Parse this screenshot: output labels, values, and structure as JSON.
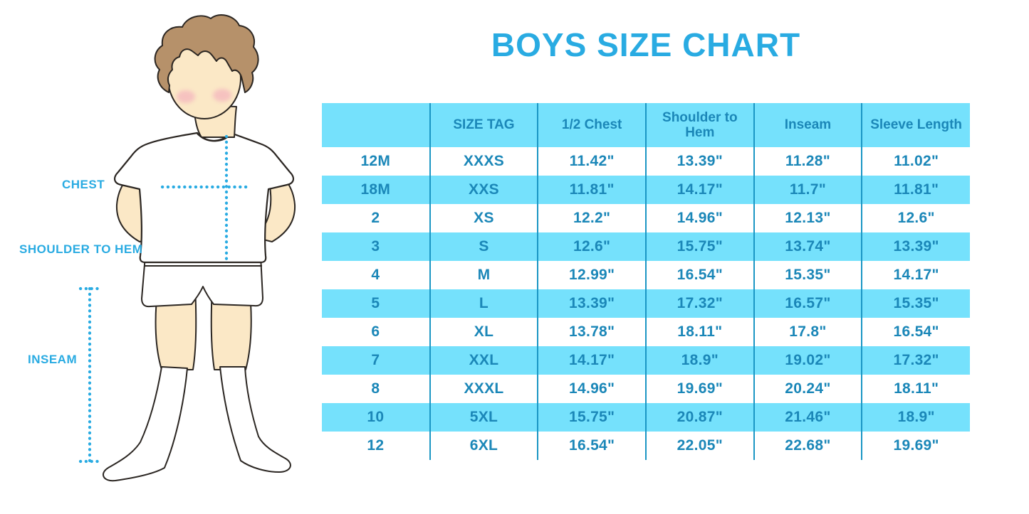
{
  "title": {
    "text": "BOYS SIZE CHART",
    "color": "#29ABE2"
  },
  "figure": {
    "labels": [
      {
        "id": "chest",
        "text": "CHEST"
      },
      {
        "id": "shoulder_to_hem",
        "text": "SHOULDER TO HEM"
      },
      {
        "id": "inseam",
        "text": "INSEAM"
      }
    ],
    "colors": {
      "skin": "#FBE8C6",
      "hair": "#B6916A",
      "blush": "#F2A4BB",
      "outline": "#2B2622",
      "garment": "#FFFFFF",
      "measure_line": "#29ABE2"
    }
  },
  "chart_data": {
    "type": "table",
    "title": "BOYS SIZE CHART",
    "columns": [
      "",
      "SIZE TAG",
      "1/2 Chest",
      "Shoulder to Hem",
      "Inseam",
      "Sleeve Length"
    ],
    "rows": [
      [
        "12M",
        "XXXS",
        "11.42\"",
        "13.39\"",
        "11.28\"",
        "11.02\""
      ],
      [
        "18M",
        "XXS",
        "11.81\"",
        "14.17\"",
        "11.7\"",
        "11.81\""
      ],
      [
        "2",
        "XS",
        "12.2\"",
        "14.96\"",
        "12.13\"",
        "12.6\""
      ],
      [
        "3",
        "S",
        "12.6\"",
        "15.75\"",
        "13.74\"",
        "13.39\""
      ],
      [
        "4",
        "M",
        "12.99\"",
        "16.54\"",
        "15.35\"",
        "14.17\""
      ],
      [
        "5",
        "L",
        "13.39\"",
        "17.32\"",
        "16.57\"",
        "15.35\""
      ],
      [
        "6",
        "XL",
        "13.78\"",
        "18.11\"",
        "17.8\"",
        "16.54\""
      ],
      [
        "7",
        "XXL",
        "14.17\"",
        "18.9\"",
        "19.02\"",
        "17.32\""
      ],
      [
        "8",
        "XXXL",
        "14.96\"",
        "19.69\"",
        "20.24\"",
        "18.11\""
      ],
      [
        "10",
        "5XL",
        "15.75\"",
        "20.87\"",
        "21.46\"",
        "18.9\""
      ],
      [
        "12",
        "6XL",
        "16.54\"",
        "22.05\"",
        "22.68\"",
        "19.69\""
      ]
    ],
    "style": {
      "band_color": "#75E1FC",
      "text_color": "#1B87B8",
      "divider_color": "#1B96C4",
      "banding": "header and alternate rows light blue, others white"
    }
  }
}
